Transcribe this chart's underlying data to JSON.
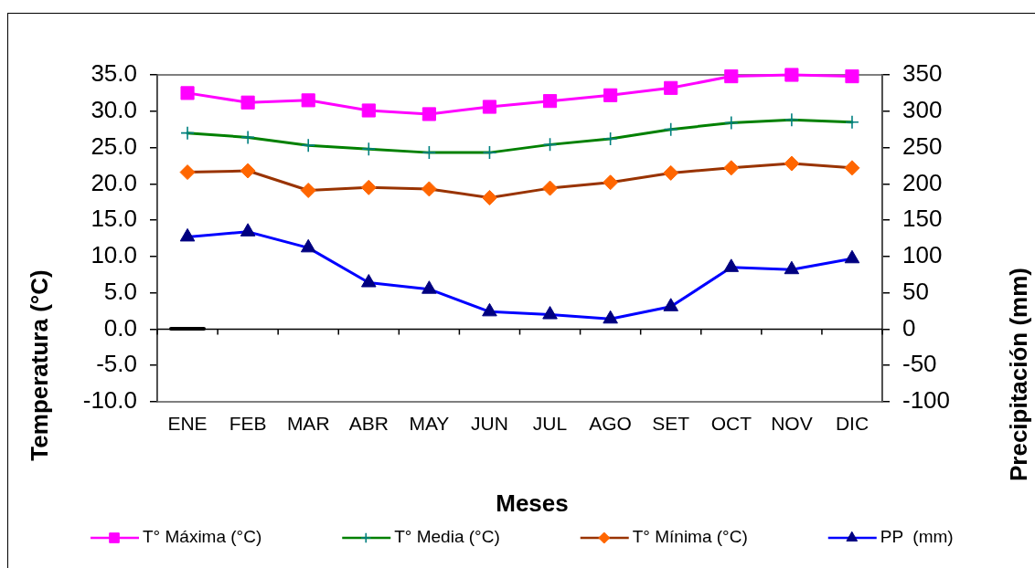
{
  "chart_data": {
    "type": "line",
    "xlabel": "Meses",
    "ylabel": "Temperatura (°C)",
    "y2label": "Precipitación (mm)",
    "categories": [
      "ENE",
      "FEB",
      "MAR",
      "ABR",
      "MAY",
      "JUN",
      "JUL",
      "AGO",
      "SET",
      "OCT",
      "NOV",
      "DIC"
    ],
    "ylim": [
      -10,
      35
    ],
    "yticks": [
      {
        "value": -10,
        "label": "-10.0"
      },
      {
        "value": -5,
        "label": "-5.0"
      },
      {
        "value": 0,
        "label": "0.0"
      },
      {
        "value": 5,
        "label": "5.0"
      },
      {
        "value": 10,
        "label": "10.0"
      },
      {
        "value": 15,
        "label": "15.0"
      },
      {
        "value": 20,
        "label": "20.0"
      },
      {
        "value": 25,
        "label": "25.0"
      },
      {
        "value": 30,
        "label": "30.0"
      },
      {
        "value": 35,
        "label": "35.0"
      }
    ],
    "y2lim": [
      -100,
      350
    ],
    "y2ticks": [
      -100,
      -50,
      0,
      50,
      100,
      150,
      200,
      250,
      300,
      350
    ],
    "legend": "bottom",
    "series": [
      {
        "name": "T° Máxima (°C)",
        "color": "#ff00ff",
        "marker": "square",
        "values": [
          32.5,
          31.2,
          31.5,
          30.1,
          29.6,
          30.6,
          31.4,
          32.2,
          33.2,
          34.8,
          35.0,
          34.8
        ]
      },
      {
        "name": "T° Media (°C)",
        "color": "#008000",
        "colors": [
          "#008080",
          "#008080",
          "#008080",
          "#008080",
          "#008080",
          "#008080",
          "#008080",
          "#008080",
          "#008080",
          "#008080",
          "#008080",
          "#008080"
        ],
        "marker": "cross",
        "values": [
          27.0,
          26.4,
          25.3,
          24.8,
          24.3,
          24.3,
          25.4,
          26.2,
          27.5,
          28.4,
          28.8,
          28.5
        ]
      },
      {
        "name": "T° Mínima (°C)",
        "color": "#993300",
        "colors": [
          "#ff6600",
          "#ff6600",
          "#ff6600",
          "#ff6600",
          "#ff6600",
          "#ff6600",
          "#ff6600",
          "#ff6600",
          "#ff6600",
          "#ff6600",
          "#ff6600",
          "#ff6600"
        ],
        "marker": "diamond",
        "values": [
          21.6,
          21.8,
          19.1,
          19.5,
          19.3,
          18.1,
          19.4,
          20.2,
          21.5,
          22.2,
          22.8,
          22.2
        ]
      },
      {
        "name": "PP  (mm)",
        "color": "#0000ff",
        "colors": [
          "#000080",
          "#000080",
          "#000080",
          "#000080",
          "#000080",
          "#000080",
          "#000080",
          "#000080",
          "#000080",
          "#000080",
          "#000080",
          "#000080"
        ],
        "marker": "triangle",
        "axis": "y2",
        "values": [
          127,
          134,
          112,
          64,
          55,
          24,
          20,
          14,
          31,
          85,
          82,
          97
        ]
      }
    ]
  }
}
